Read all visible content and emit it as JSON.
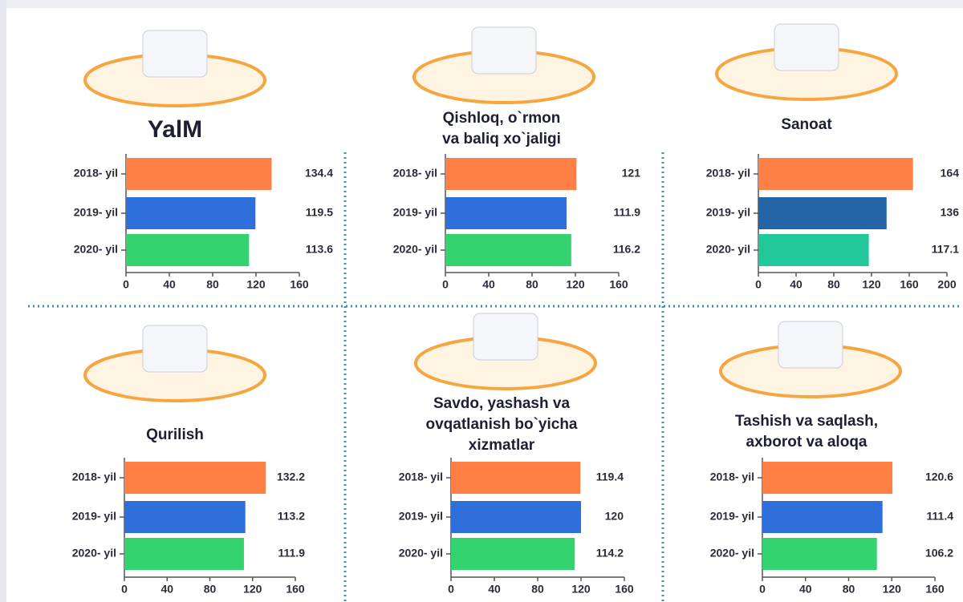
{
  "chart_data": [
    {
      "type": "bar",
      "orientation": "horizontal",
      "title": "YalM",
      "categories": [
        "2018- yil",
        "2019- yil",
        "2020- yil"
      ],
      "values": [
        134.4,
        119.5,
        113.6
      ],
      "colors": [
        "#ff7f45",
        "#2f6fdc",
        "#33d46f"
      ],
      "xlim": [
        0,
        160
      ],
      "xticks": [
        0,
        40,
        80,
        120,
        160
      ]
    },
    {
      "type": "bar",
      "orientation": "horizontal",
      "title": "Qishloq, o`rmon\nva baliq xo`jaligi",
      "categories": [
        "2018- yil",
        "2019- yil",
        "2020- yil"
      ],
      "values": [
        121,
        111.9,
        116.2
      ],
      "colors": [
        "#ff7f45",
        "#2f6fdc",
        "#33d46f"
      ],
      "xlim": [
        0,
        160
      ],
      "xticks": [
        0,
        40,
        80,
        120,
        160
      ]
    },
    {
      "type": "bar",
      "orientation": "horizontal",
      "title": "Sanoat",
      "categories": [
        "2018- yil",
        "2019- yil",
        "2020- yil"
      ],
      "values": [
        164,
        136,
        117.1
      ],
      "colors": [
        "#ff7f45",
        "#2465a8",
        "#22c79a"
      ],
      "xlim": [
        0,
        200
      ],
      "xticks": [
        0,
        40,
        80,
        120,
        160,
        200
      ]
    },
    {
      "type": "bar",
      "orientation": "horizontal",
      "title": "Qurilish",
      "categories": [
        "2018- yil",
        "2019- yil",
        "2020- yil"
      ],
      "values": [
        132.2,
        113.2,
        111.9
      ],
      "colors": [
        "#ff7f45",
        "#2f6fdc",
        "#33d46f"
      ],
      "xlim": [
        0,
        160
      ],
      "xticks": [
        0,
        40,
        80,
        120,
        160
      ]
    },
    {
      "type": "bar",
      "orientation": "horizontal",
      "title": "Savdo, yashash va\novqatlanish bo`yicha\nxizmatlar",
      "categories": [
        "2018- yil",
        "2019- yil",
        "2020- yil"
      ],
      "values": [
        119.4,
        120,
        114.2
      ],
      "colors": [
        "#ff7f45",
        "#2f6fdc",
        "#33d46f"
      ],
      "xlim": [
        0,
        160
      ],
      "xticks": [
        0,
        40,
        80,
        120,
        160
      ]
    },
    {
      "type": "bar",
      "orientation": "horizontal",
      "title": "Tashish va saqlash,\naxborot va aloqa",
      "categories": [
        "2018- yil",
        "2019- yil",
        "2020- yil"
      ],
      "values": [
        120.6,
        111.4,
        106.2
      ],
      "colors": [
        "#ff7f45",
        "#2f6fdc",
        "#33d46f"
      ],
      "xlim": [
        0,
        160
      ],
      "xticks": [
        0,
        40,
        80,
        120,
        160
      ]
    }
  ]
}
